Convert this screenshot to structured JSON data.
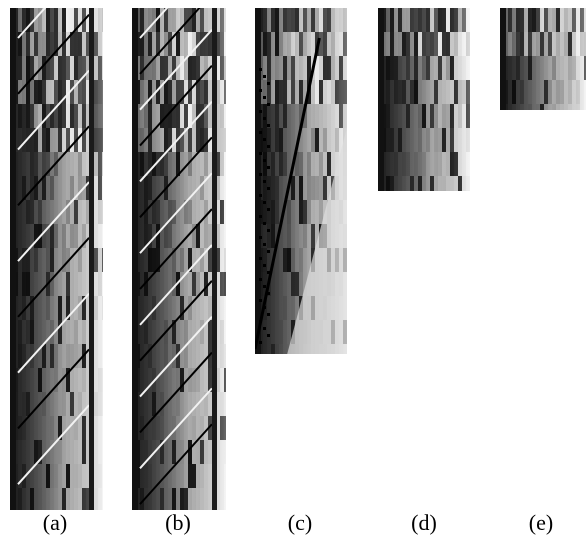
{
  "figure": {
    "panel_labels": [
      "(a)",
      "(b)",
      "(c)",
      "(d)",
      "(e)"
    ]
  }
}
